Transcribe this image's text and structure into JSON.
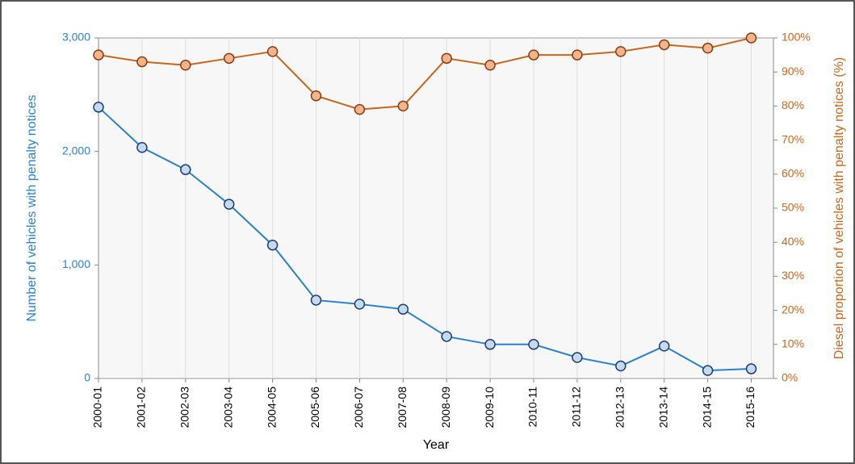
{
  "chart_data": {
    "type": "line",
    "x_label": "Year",
    "y_label": "Number of vehicles with penalty notices",
    "y2_label": "Diesel proportion of vehicles with penalty notices (%)",
    "categories": [
      "2000-01",
      "2001-02",
      "2002-03",
      "2003-04",
      "2004-05",
      "2005-06",
      "2006-07",
      "2007-08",
      "2008-09",
      "2009-10",
      "2010-11",
      "2011-12",
      "2012-13",
      "2013-14",
      "2014-15",
      "2015-16"
    ],
    "series": [
      {
        "name": "Number of vehicles with penalty notices",
        "color": "#2a82cf",
        "marker_fill": "#c6d9f0",
        "marker_stroke": "#1e3f6e",
        "values": [
          2390,
          2035,
          1840,
          1535,
          1175,
          690,
          655,
          610,
          370,
          300,
          300,
          185,
          110,
          285,
          70,
          85
        ]
      },
      {
        "name": "Diesel proportion of vehicles with penalty notices (%)",
        "axis": "y2",
        "color": "#c8661e",
        "marker_fill": "#f2b48a",
        "marker_stroke": "#8a3c12",
        "values": [
          95,
          93,
          92,
          94,
          96,
          83,
          79,
          80,
          94,
          92,
          95,
          95,
          96,
          98,
          97,
          100
        ]
      }
    ],
    "ylim": [
      0,
      3000
    ],
    "yticks": [
      0,
      {
        "value": 1000,
        "label": "1,000"
      },
      {
        "value": 2000,
        "label": "2,000"
      },
      {
        "value": 3000,
        "label": "3,000"
      }
    ],
    "y2lim": [
      0,
      100
    ],
    "y2ticks": [
      {
        "value": 0,
        "label": "0%"
      },
      {
        "value": 10,
        "label": "10%"
      },
      {
        "value": 20,
        "label": "20%"
      },
      {
        "value": 30,
        "label": "30%"
      },
      {
        "value": 40,
        "label": "40%"
      },
      {
        "value": 50,
        "label": "50%"
      },
      {
        "value": 60,
        "label": "60%"
      },
      {
        "value": 70,
        "label": "70%"
      },
      {
        "value": 80,
        "label": "80%"
      },
      {
        "value": 90,
        "label": "90%"
      },
      {
        "value": 100,
        "label": "100%"
      }
    ],
    "grid": true,
    "y_color": "#2a82cf",
    "y2_color": "#c8661e"
  }
}
